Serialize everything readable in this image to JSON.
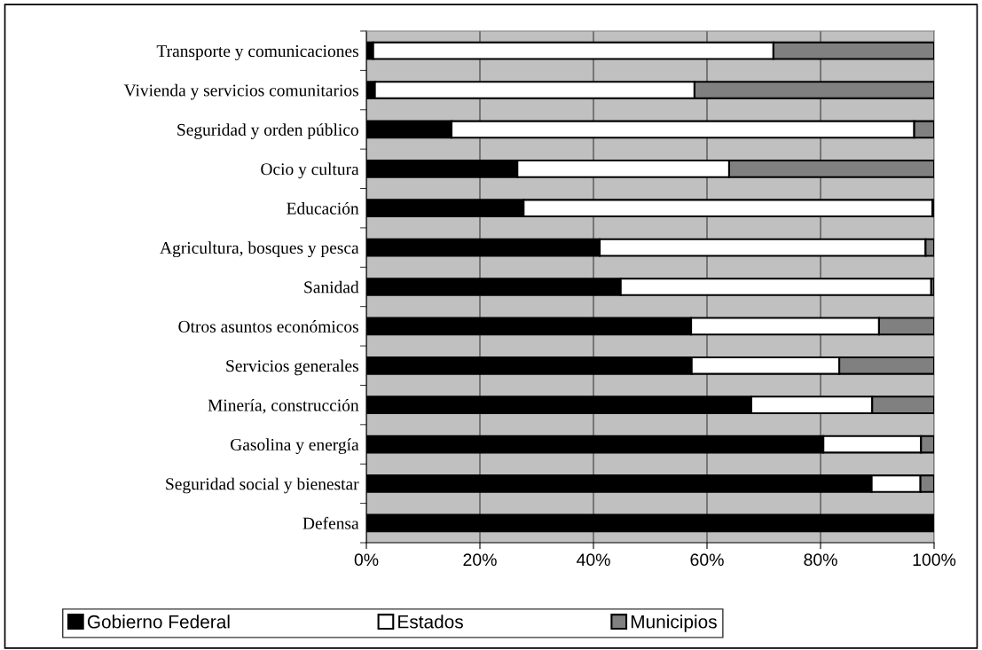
{
  "chart_data": {
    "type": "bar",
    "orientation": "horizontal",
    "stacked": true,
    "categories": [
      "Transporte y comunicaciones",
      "Vivienda y servicios comunitarios",
      "Seguridad y orden público",
      "Ocio y cultura",
      "Educación",
      "Agricultura, bosques y pesca",
      "Sanidad",
      "Otros asuntos económicos",
      "Servicios generales",
      "Minería, construcción",
      "Gasolina y energía",
      "Seguridad social y bienestar",
      "Defensa"
    ],
    "series": [
      {
        "name": "Gobierno Federal",
        "color": "#000000",
        "values": [
          1.2,
          1.5,
          15,
          26.6,
          27.7,
          41.1,
          44.8,
          57.2,
          57.3,
          67.8,
          80.5,
          89,
          100
        ]
      },
      {
        "name": "Estados",
        "color": "#ffffff",
        "values": [
          70.5,
          56.3,
          81.5,
          37.3,
          72,
          57.4,
          54.7,
          33.1,
          26,
          21.3,
          17.2,
          8.6,
          null
        ]
      },
      {
        "name": "Municipios",
        "color": "#808080",
        "values": [
          28.3,
          42.2,
          3.5,
          36.1,
          0.3,
          1.5,
          0.5,
          9.7,
          16.7,
          10.9,
          2.3,
          2.4,
          null
        ]
      }
    ],
    "xlim": [
      0,
      100
    ],
    "xticks": [
      {
        "value": 0,
        "label": "0%"
      },
      {
        "value": 20,
        "label": "20%"
      },
      {
        "value": 40,
        "label": "40%"
      },
      {
        "value": 60,
        "label": "60%"
      },
      {
        "value": 80,
        "label": "80%"
      },
      {
        "value": 100,
        "label": "100%"
      }
    ],
    "grid": "x",
    "legend": "bottom"
  }
}
